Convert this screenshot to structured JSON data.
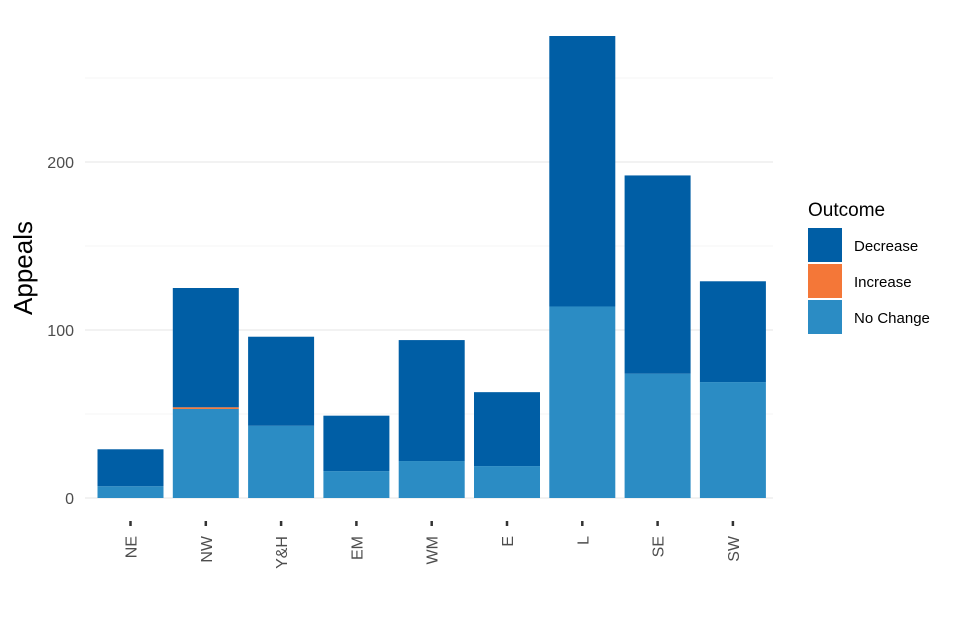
{
  "chart_data": {
    "type": "bar",
    "stacked": true,
    "categories": [
      "NE",
      "NW",
      "Y&H",
      "EM",
      "WM",
      "E",
      "L",
      "SE",
      "SW"
    ],
    "series": [
      {
        "name": "No Change",
        "color": "#2b8cc4",
        "values": [
          7,
          53,
          43,
          16,
          22,
          19,
          114,
          74,
          69
        ]
      },
      {
        "name": "Increase",
        "color": "#f47738",
        "values": [
          0,
          1,
          0,
          0,
          0,
          0,
          0,
          0,
          0
        ]
      },
      {
        "name": "Decrease",
        "color": "#005ea5",
        "values": [
          22,
          71,
          53,
          33,
          72,
          44,
          161,
          118,
          60
        ]
      }
    ],
    "ylabel": "Appeals",
    "xlabel": "",
    "ylim": [
      0,
      275
    ],
    "yticks": [
      0,
      100,
      200
    ],
    "grid": true,
    "legend": {
      "title": "Outcome",
      "placement": "right",
      "items": [
        "Decrease",
        "Increase",
        "No Change"
      ]
    }
  }
}
